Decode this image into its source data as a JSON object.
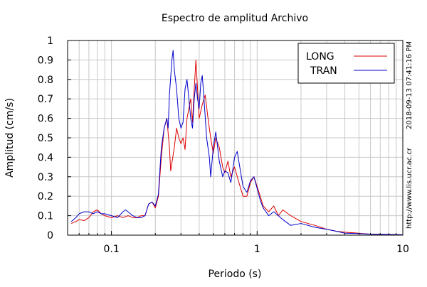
{
  "chart_data": {
    "type": "line",
    "title": "Espectro de amplitud Archivo",
    "xlabel": "Periodo (s)",
    "ylabel": "Amplitud (cm/s)",
    "x_scale": "log",
    "xlim": [
      0.05,
      10
    ],
    "ylim": [
      0,
      1
    ],
    "x_ticks": [
      {
        "value": 0.1,
        "label": "0.1"
      },
      {
        "value": 1,
        "label": "1"
      },
      {
        "value": 10,
        "label": "10"
      }
    ],
    "y_ticks": [
      {
        "value": 0,
        "label": "0"
      },
      {
        "value": 0.1,
        "label": "0.1"
      },
      {
        "value": 0.2,
        "label": "0.2"
      },
      {
        "value": 0.3,
        "label": "0.3"
      },
      {
        "value": 0.4,
        "label": "0.4"
      },
      {
        "value": 0.5,
        "label": "0.5"
      },
      {
        "value": 0.6,
        "label": "0.6"
      },
      {
        "value": 0.7,
        "label": "0.7"
      },
      {
        "value": 0.8,
        "label": "0.8"
      },
      {
        "value": 0.9,
        "label": "0.9"
      },
      {
        "value": 1,
        "label": "1"
      }
    ],
    "grid": true,
    "legend_position": "top-right",
    "timestamp": "2018-09-13 07:41:16 PM",
    "source_url": "http://www.lis.ucr.ac.cr",
    "series": [
      {
        "name": "LONG",
        "color": "#dd0000",
        "points": [
          [
            0.053,
            0.06
          ],
          [
            0.057,
            0.07
          ],
          [
            0.06,
            0.08
          ],
          [
            0.065,
            0.075
          ],
          [
            0.07,
            0.09
          ],
          [
            0.075,
            0.12
          ],
          [
            0.08,
            0.13
          ],
          [
            0.085,
            0.11
          ],
          [
            0.09,
            0.1
          ],
          [
            0.1,
            0.09
          ],
          [
            0.11,
            0.1
          ],
          [
            0.12,
            0.09
          ],
          [
            0.13,
            0.1
          ],
          [
            0.14,
            0.09
          ],
          [
            0.15,
            0.09
          ],
          [
            0.16,
            0.1
          ],
          [
            0.17,
            0.1
          ],
          [
            0.18,
            0.16
          ],
          [
            0.19,
            0.17
          ],
          [
            0.2,
            0.14
          ],
          [
            0.21,
            0.2
          ],
          [
            0.22,
            0.4
          ],
          [
            0.23,
            0.55
          ],
          [
            0.24,
            0.6
          ],
          [
            0.25,
            0.45
          ],
          [
            0.255,
            0.33
          ],
          [
            0.27,
            0.45
          ],
          [
            0.28,
            0.55
          ],
          [
            0.29,
            0.5
          ],
          [
            0.3,
            0.47
          ],
          [
            0.31,
            0.5
          ],
          [
            0.32,
            0.44
          ],
          [
            0.33,
            0.6
          ],
          [
            0.35,
            0.7
          ],
          [
            0.36,
            0.58
          ],
          [
            0.37,
            0.75
          ],
          [
            0.38,
            0.9
          ],
          [
            0.39,
            0.75
          ],
          [
            0.4,
            0.6
          ],
          [
            0.42,
            0.67
          ],
          [
            0.44,
            0.72
          ],
          [
            0.46,
            0.6
          ],
          [
            0.48,
            0.5
          ],
          [
            0.5,
            0.42
          ],
          [
            0.52,
            0.5
          ],
          [
            0.55,
            0.45
          ],
          [
            0.58,
            0.35
          ],
          [
            0.6,
            0.32
          ],
          [
            0.63,
            0.38
          ],
          [
            0.66,
            0.3
          ],
          [
            0.7,
            0.35
          ],
          [
            0.75,
            0.27
          ],
          [
            0.8,
            0.2
          ],
          [
            0.85,
            0.2
          ],
          [
            0.9,
            0.27
          ],
          [
            0.95,
            0.3
          ],
          [
            1.0,
            0.25
          ],
          [
            1.05,
            0.2
          ],
          [
            1.1,
            0.15
          ],
          [
            1.2,
            0.12
          ],
          [
            1.3,
            0.15
          ],
          [
            1.4,
            0.1
          ],
          [
            1.5,
            0.13
          ],
          [
            1.7,
            0.1
          ],
          [
            2.0,
            0.07
          ],
          [
            2.5,
            0.05
          ],
          [
            3.0,
            0.03
          ],
          [
            3.5,
            0.02
          ],
          [
            4.0,
            0.015
          ],
          [
            5.0,
            0.01
          ],
          [
            6.0,
            0.005
          ],
          [
            8.0,
            0.003
          ],
          [
            10.0,
            0.002
          ]
        ]
      },
      {
        "name": "TRAN",
        "color": "#0000cc",
        "points": [
          [
            0.053,
            0.07
          ],
          [
            0.057,
            0.09
          ],
          [
            0.06,
            0.11
          ],
          [
            0.065,
            0.12
          ],
          [
            0.07,
            0.12
          ],
          [
            0.075,
            0.11
          ],
          [
            0.08,
            0.12
          ],
          [
            0.085,
            0.11
          ],
          [
            0.09,
            0.11
          ],
          [
            0.1,
            0.1
          ],
          [
            0.11,
            0.09
          ],
          [
            0.12,
            0.12
          ],
          [
            0.125,
            0.13
          ],
          [
            0.13,
            0.12
          ],
          [
            0.14,
            0.1
          ],
          [
            0.15,
            0.09
          ],
          [
            0.16,
            0.09
          ],
          [
            0.17,
            0.1
          ],
          [
            0.18,
            0.16
          ],
          [
            0.19,
            0.17
          ],
          [
            0.2,
            0.15
          ],
          [
            0.21,
            0.21
          ],
          [
            0.22,
            0.45
          ],
          [
            0.23,
            0.55
          ],
          [
            0.24,
            0.6
          ],
          [
            0.245,
            0.55
          ],
          [
            0.25,
            0.72
          ],
          [
            0.26,
            0.9
          ],
          [
            0.265,
            0.95
          ],
          [
            0.27,
            0.85
          ],
          [
            0.28,
            0.75
          ],
          [
            0.29,
            0.6
          ],
          [
            0.3,
            0.55
          ],
          [
            0.31,
            0.58
          ],
          [
            0.32,
            0.75
          ],
          [
            0.33,
            0.8
          ],
          [
            0.34,
            0.7
          ],
          [
            0.35,
            0.6
          ],
          [
            0.36,
            0.55
          ],
          [
            0.37,
            0.7
          ],
          [
            0.38,
            0.78
          ],
          [
            0.39,
            0.7
          ],
          [
            0.4,
            0.65
          ],
          [
            0.41,
            0.78
          ],
          [
            0.42,
            0.82
          ],
          [
            0.43,
            0.72
          ],
          [
            0.45,
            0.5
          ],
          [
            0.47,
            0.4
          ],
          [
            0.48,
            0.3
          ],
          [
            0.5,
            0.45
          ],
          [
            0.52,
            0.53
          ],
          [
            0.55,
            0.38
          ],
          [
            0.58,
            0.3
          ],
          [
            0.6,
            0.33
          ],
          [
            0.63,
            0.32
          ],
          [
            0.66,
            0.27
          ],
          [
            0.7,
            0.4
          ],
          [
            0.73,
            0.43
          ],
          [
            0.76,
            0.35
          ],
          [
            0.8,
            0.25
          ],
          [
            0.85,
            0.22
          ],
          [
            0.9,
            0.28
          ],
          [
            0.95,
            0.3
          ],
          [
            1.0,
            0.24
          ],
          [
            1.05,
            0.18
          ],
          [
            1.1,
            0.14
          ],
          [
            1.2,
            0.1
          ],
          [
            1.3,
            0.12
          ],
          [
            1.4,
            0.1
          ],
          [
            1.5,
            0.08
          ],
          [
            1.7,
            0.05
          ],
          [
            2.0,
            0.06
          ],
          [
            2.5,
            0.04
          ],
          [
            3.0,
            0.03
          ],
          [
            3.5,
            0.02
          ],
          [
            4.0,
            0.01
          ],
          [
            5.0,
            0.008
          ],
          [
            6.0,
            0.005
          ],
          [
            8.0,
            0.003
          ],
          [
            10.0,
            0.002
          ]
        ]
      }
    ]
  }
}
